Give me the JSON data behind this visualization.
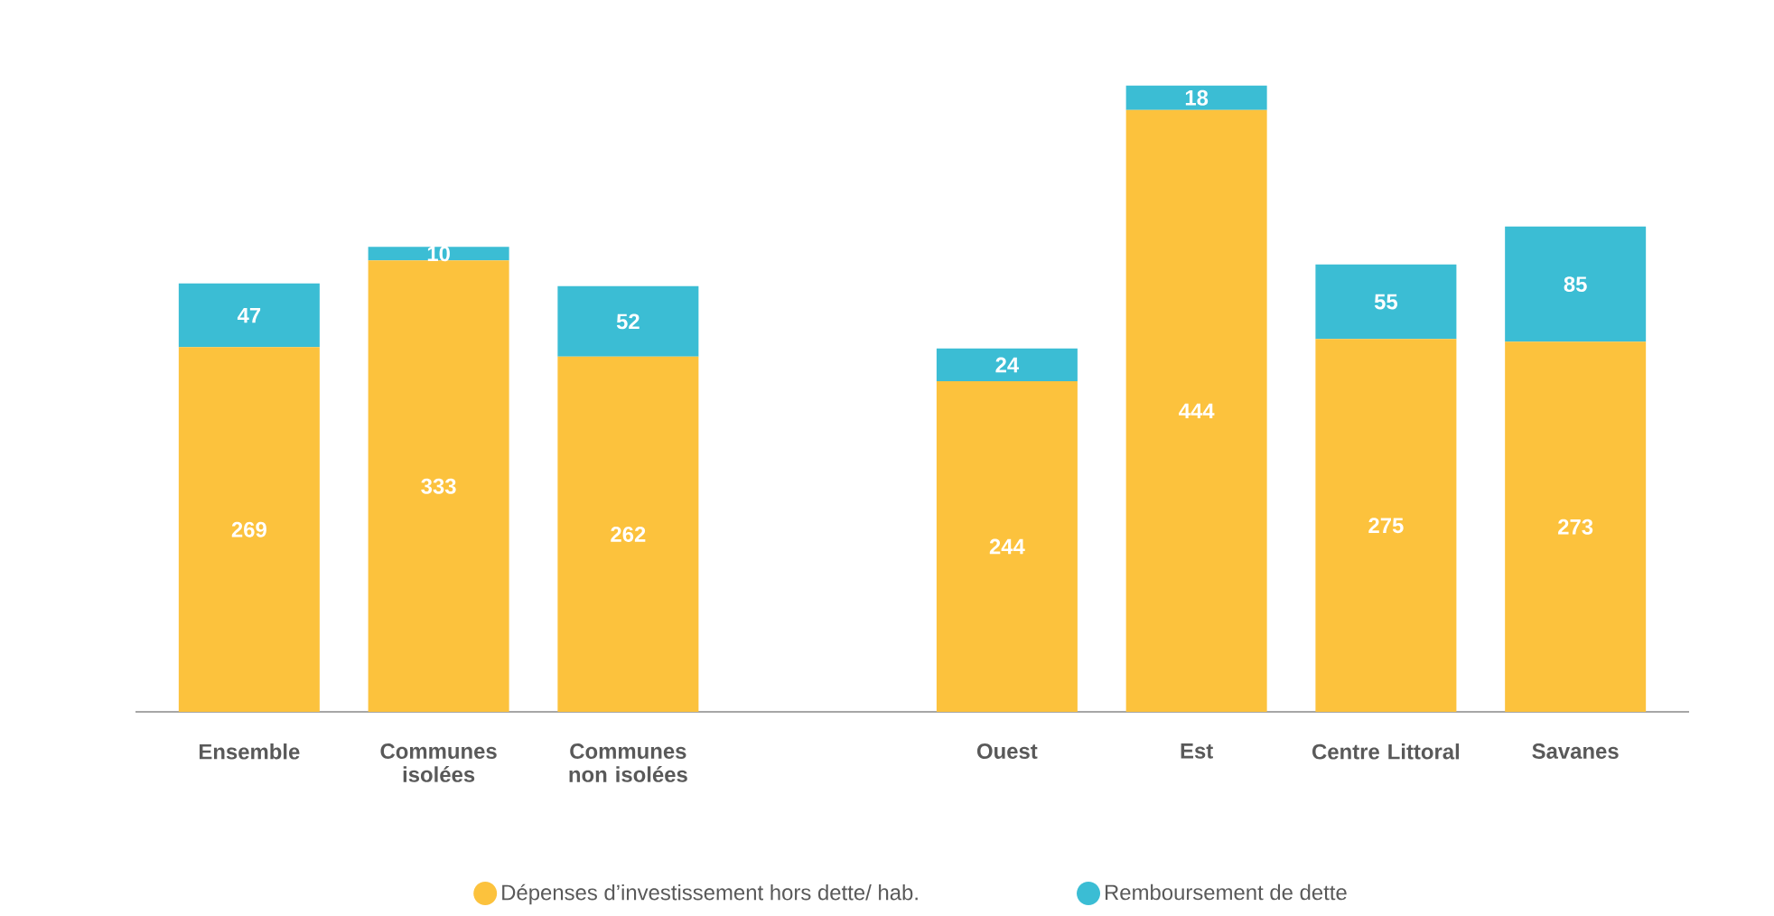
{
  "chart_data": {
    "type": "bar",
    "stacked": true,
    "data_labels": true,
    "legend": "bottom",
    "categories": [
      "Ensemble",
      "Communes isolées",
      "Communes non isolées",
      null,
      "Ouest",
      "Est",
      "Centre Littoral",
      "Savanes"
    ],
    "tick_labels": "x",
    "series": [
      {
        "name": "Dépenses d’investissement hors dette/ hab.",
        "color": "#fcc23d",
        "values": [
          269,
          333,
          262,
          null,
          244,
          444,
          275,
          273
        ]
      },
      {
        "name": "Remboursement de dette",
        "color": "#3bbdd4",
        "values": [
          47,
          10,
          52,
          null,
          24,
          18,
          55,
          85
        ]
      }
    ]
  }
}
